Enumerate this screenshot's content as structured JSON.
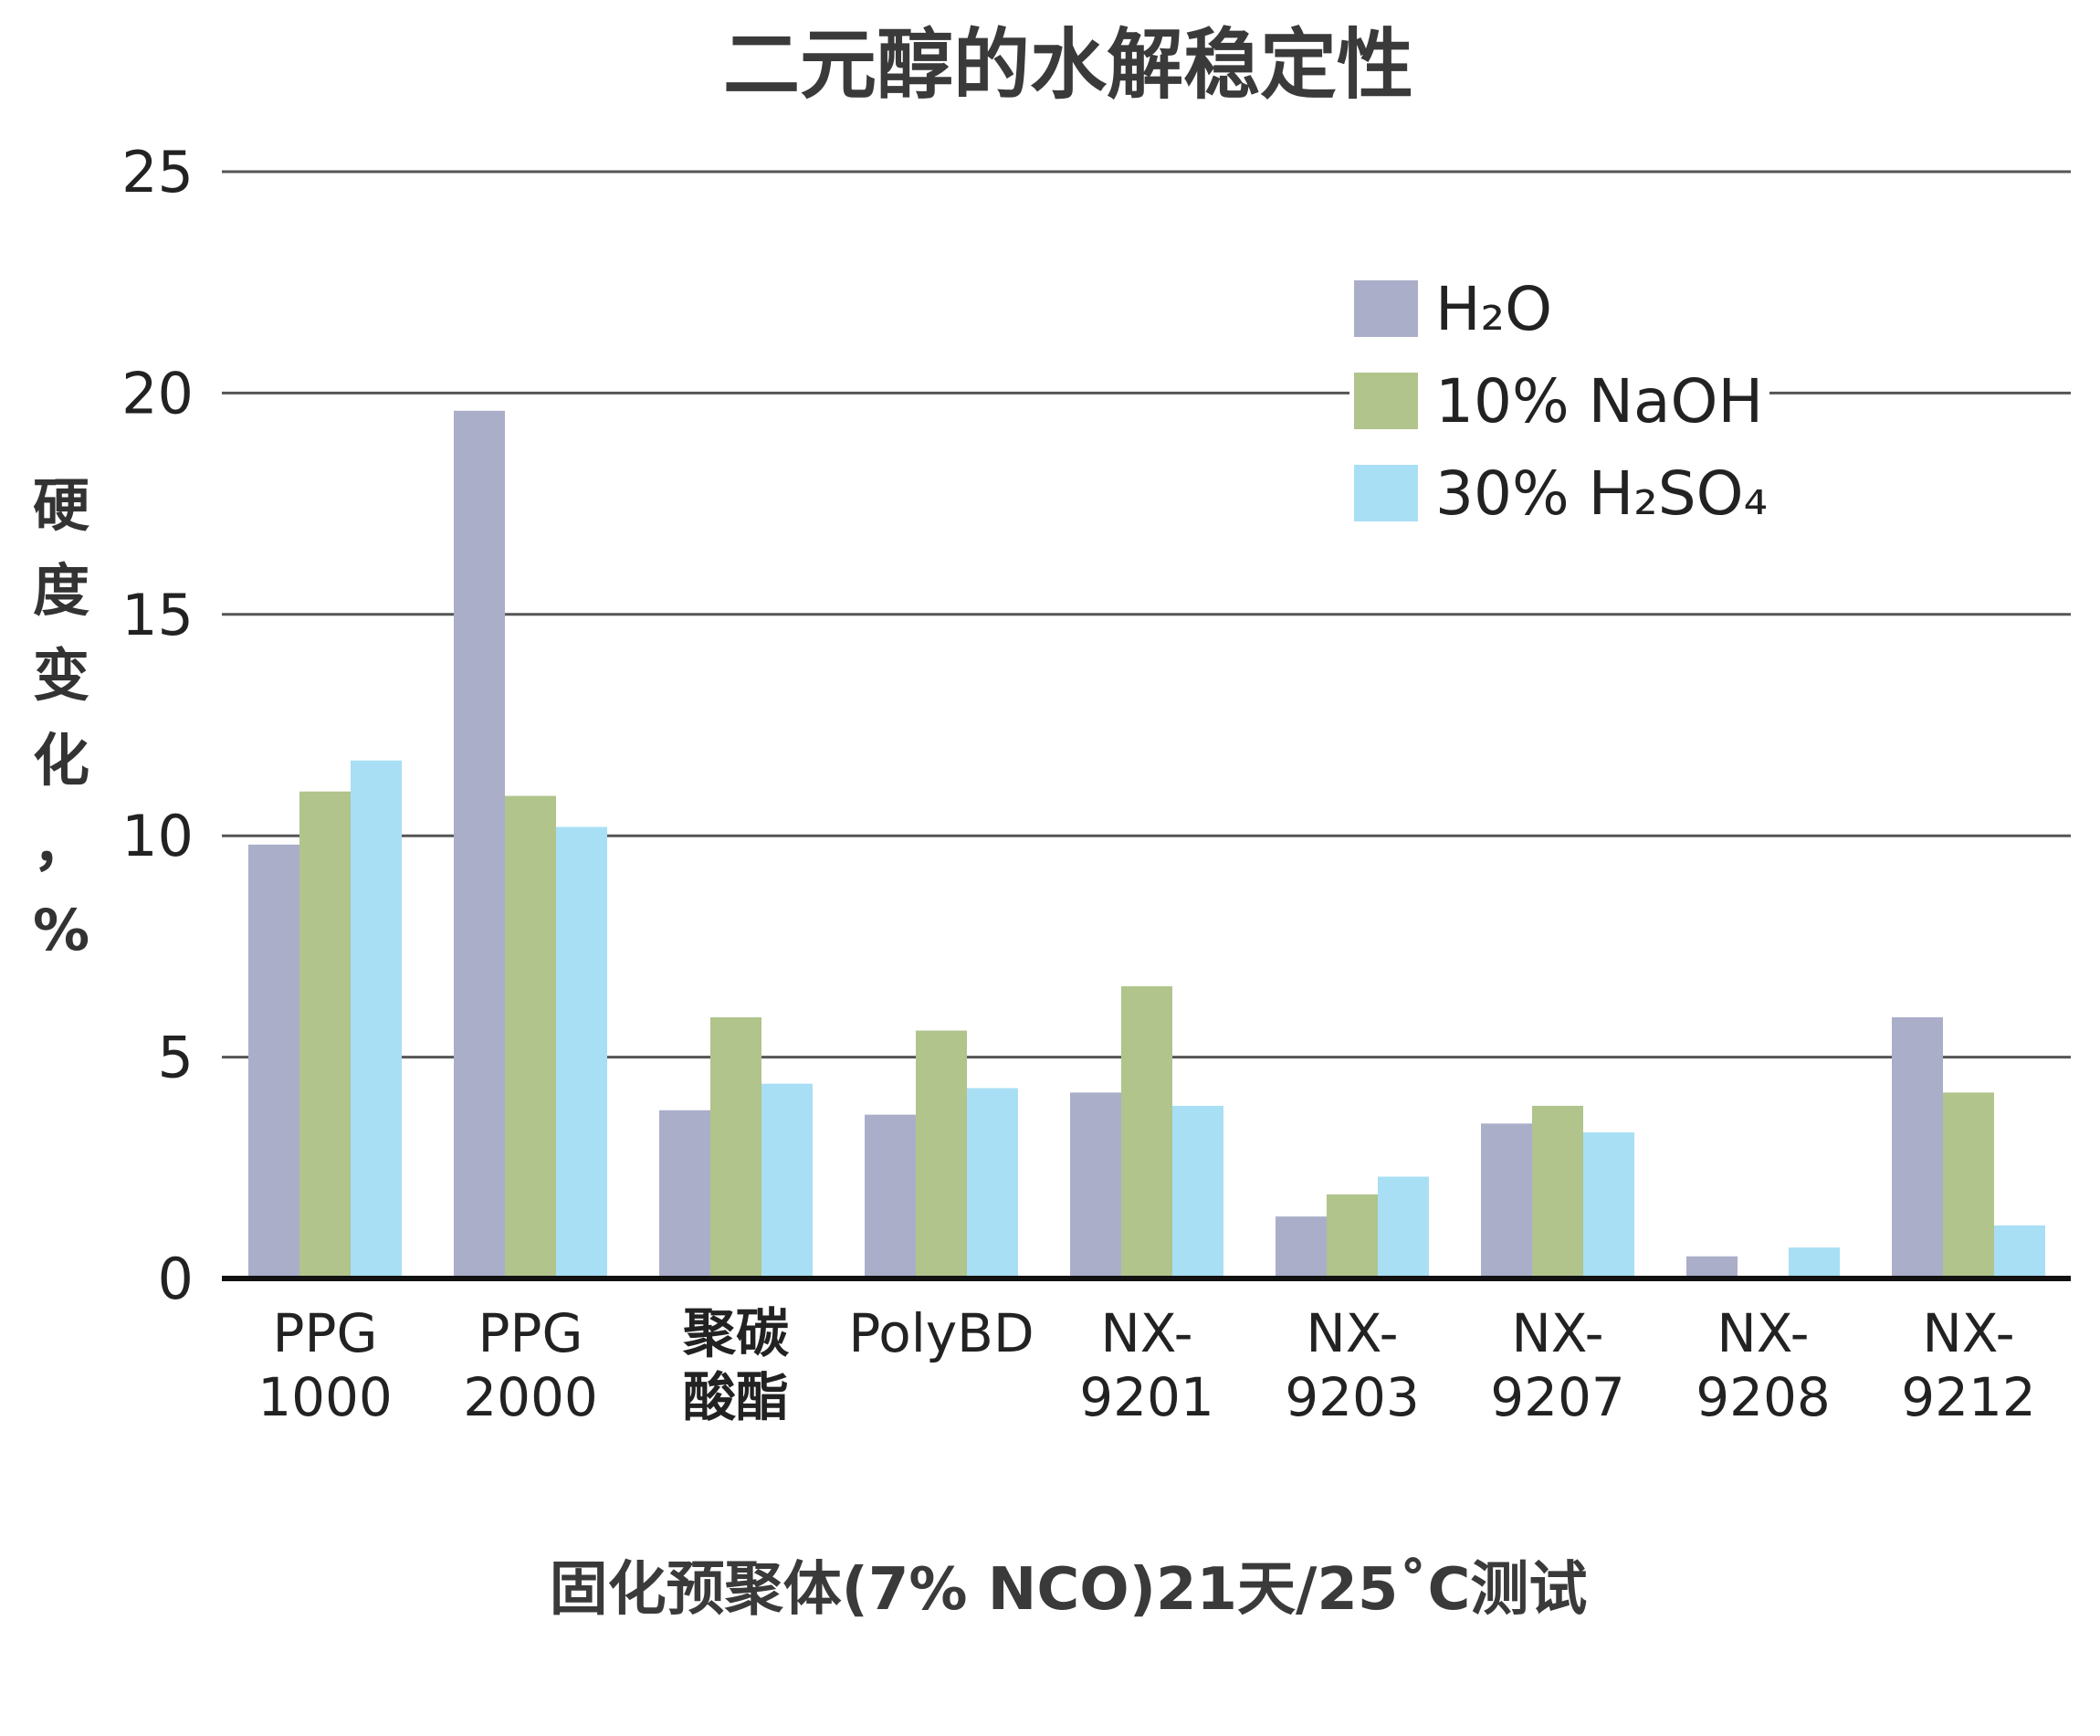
{
  "chart_data": {
    "type": "bar",
    "title": "二元醇的水解稳定性",
    "ylabel": "硬度变化，%",
    "xlabel": "固化预聚体(7% NCO)21天/25˚C测试",
    "ylim": [
      0,
      25
    ],
    "yticks": [
      0,
      5,
      10,
      15,
      20,
      25
    ],
    "grid": true,
    "legend_position": "top-right",
    "categories": [
      [
        "PPG",
        "1000"
      ],
      [
        "PPG",
        "2000"
      ],
      [
        "聚碳",
        "酸酯"
      ],
      [
        "PolyBD"
      ],
      [
        "NX-",
        "9201"
      ],
      [
        "NX-",
        "9203"
      ],
      [
        "NX-",
        "9207"
      ],
      [
        "NX-",
        "9208"
      ],
      [
        "NX-",
        "9212"
      ]
    ],
    "series": [
      {
        "name": "H₂O",
        "color": "#abaec9",
        "values": [
          9.8,
          19.6,
          3.8,
          3.7,
          4.2,
          1.4,
          3.5,
          0.5,
          5.9
        ]
      },
      {
        "name": "10% NaOH",
        "color": "#b0c48c",
        "values": [
          11.0,
          10.9,
          5.9,
          5.6,
          6.6,
          1.9,
          3.9,
          0.0,
          4.2
        ]
      },
      {
        "name": "30% H₂SO₄",
        "color": "#a8dff5",
        "values": [
          11.7,
          10.2,
          4.4,
          4.3,
          3.9,
          2.3,
          3.3,
          0.7,
          1.2
        ]
      }
    ]
  }
}
